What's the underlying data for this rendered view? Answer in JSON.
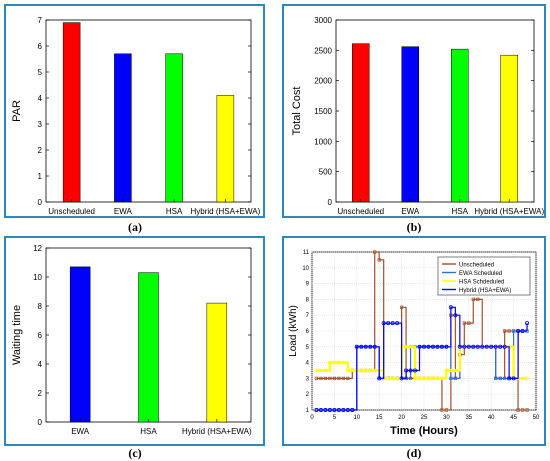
{
  "chart_data": [
    {
      "type": "bar",
      "panel_label": "(a)",
      "categories": [
        "Unscheduled",
        "EWA",
        "HSA",
        "Hybrid (HSA+EWA)"
      ],
      "values": [
        6.9,
        5.7,
        5.7,
        4.1
      ],
      "colors": [
        "#ff0000",
        "#0000ff",
        "#00ff00",
        "#ffff00"
      ],
      "ylabel": "PAR",
      "xlabel": "",
      "ylim": [
        0,
        7
      ],
      "yticks": [
        0,
        1,
        2,
        3,
        4,
        5,
        6,
        7
      ],
      "grid": false
    },
    {
      "type": "bar",
      "panel_label": "(b)",
      "categories": [
        "Unscheduled",
        "EWA",
        "HSA",
        "Hybrid (HSA+EWA)"
      ],
      "values": [
        2610,
        2560,
        2520,
        2420
      ],
      "colors": [
        "#ff0000",
        "#0000ff",
        "#00ff00",
        "#ffff00"
      ],
      "ylabel": "Total Cost",
      "xlabel": "",
      "ylim": [
        0,
        3000
      ],
      "yticks": [
        0,
        500,
        1000,
        1500,
        2000,
        2500,
        3000
      ],
      "grid": false
    },
    {
      "type": "bar",
      "panel_label": "(c)",
      "categories": [
        "EWA",
        "HSA",
        "Hybrid (HSA+EWA)"
      ],
      "values": [
        10.7,
        10.3,
        8.2
      ],
      "colors": [
        "#0000ff",
        "#00ff00",
        "#ffff00"
      ],
      "ylabel": "Waiting time",
      "xlabel": "",
      "ylim": [
        0,
        12
      ],
      "yticks": [
        0,
        2,
        4,
        6,
        8,
        10,
        12
      ],
      "grid": false
    },
    {
      "type": "line",
      "panel_label": "(d)",
      "xlabel": "Time (Hours)",
      "ylabel": "Load (kWh)",
      "xlim": [
        0,
        50
      ],
      "ylim": [
        1,
        11
      ],
      "xticks": [
        0,
        5,
        10,
        15,
        20,
        25,
        30,
        35,
        40,
        45,
        50
      ],
      "yticks": [
        1,
        2,
        3,
        4,
        5,
        6,
        7,
        8,
        9,
        10,
        11
      ],
      "grid": true,
      "legend_position": "top-right",
      "x": [
        1,
        2,
        3,
        4,
        5,
        6,
        7,
        8,
        9,
        10,
        11,
        12,
        13,
        14,
        15,
        16,
        17,
        18,
        19,
        20,
        21,
        22,
        23,
        24,
        25,
        26,
        27,
        28,
        29,
        30,
        31,
        32,
        33,
        34,
        35,
        36,
        37,
        38,
        39,
        40,
        41,
        42,
        43,
        44,
        45,
        46,
        47,
        48
      ],
      "series": [
        {
          "name": "Unscheduled",
          "color": "#a0522d",
          "marker": "square",
          "values": [
            3,
            3,
            3,
            3,
            3,
            3,
            3,
            3,
            3.5,
            3.5,
            3.5,
            3.5,
            3.5,
            11,
            10.5,
            3,
            3,
            3,
            3,
            7.5,
            3,
            3,
            3,
            3,
            3,
            3,
            3,
            3,
            1,
            1,
            7,
            3,
            4.5,
            6.5,
            6.5,
            8,
            8,
            5,
            5,
            5,
            3,
            3,
            6,
            6,
            6,
            1,
            1,
            1
          ]
        },
        {
          "name": "EWA Scheduled",
          "color": "#2a6fdb",
          "marker": "square",
          "values": [
            1,
            1,
            1,
            1,
            1,
            1,
            1,
            1,
            1,
            5,
            5,
            5,
            5,
            5,
            3,
            3,
            3,
            3,
            3,
            3,
            3,
            5,
            5,
            5,
            5,
            5,
            5,
            5,
            5,
            5,
            3,
            3,
            5,
            5,
            5,
            5,
            5,
            5,
            5,
            5,
            3,
            3,
            3,
            3,
            6,
            6,
            6,
            6
          ]
        },
        {
          "name": "HSA Schdeduled",
          "color": "#ffff00",
          "marker": "square",
          "values": [
            3.5,
            3.5,
            3.5,
            4,
            4,
            4,
            4,
            3.5,
            3.5,
            3.5,
            3.5,
            3.5,
            3.5,
            3.5,
            3.5,
            3,
            3,
            3,
            3,
            5,
            5,
            5,
            3,
            3,
            3,
            3,
            3,
            3,
            3,
            3.5,
            3.5,
            3.5,
            5,
            5,
            5,
            5,
            5,
            5,
            5,
            5,
            5,
            5,
            5,
            5,
            3,
            3,
            3,
            3
          ]
        },
        {
          "name": "Hybrid (HSA+EWA)",
          "color": "#0000ff",
          "marker": "circle",
          "values": [
            1,
            1,
            1,
            1,
            1,
            1,
            1,
            1,
            1,
            5,
            5,
            5,
            5,
            5,
            3,
            6.5,
            6.5,
            6.5,
            6.5,
            3,
            3.5,
            3.5,
            3.5,
            5,
            5,
            5,
            5,
            5,
            5,
            5,
            7.5,
            7,
            5,
            5,
            5,
            5,
            5,
            5,
            5,
            5,
            5,
            5,
            5,
            3,
            3,
            6,
            6,
            6.5
          ]
        }
      ]
    }
  ]
}
